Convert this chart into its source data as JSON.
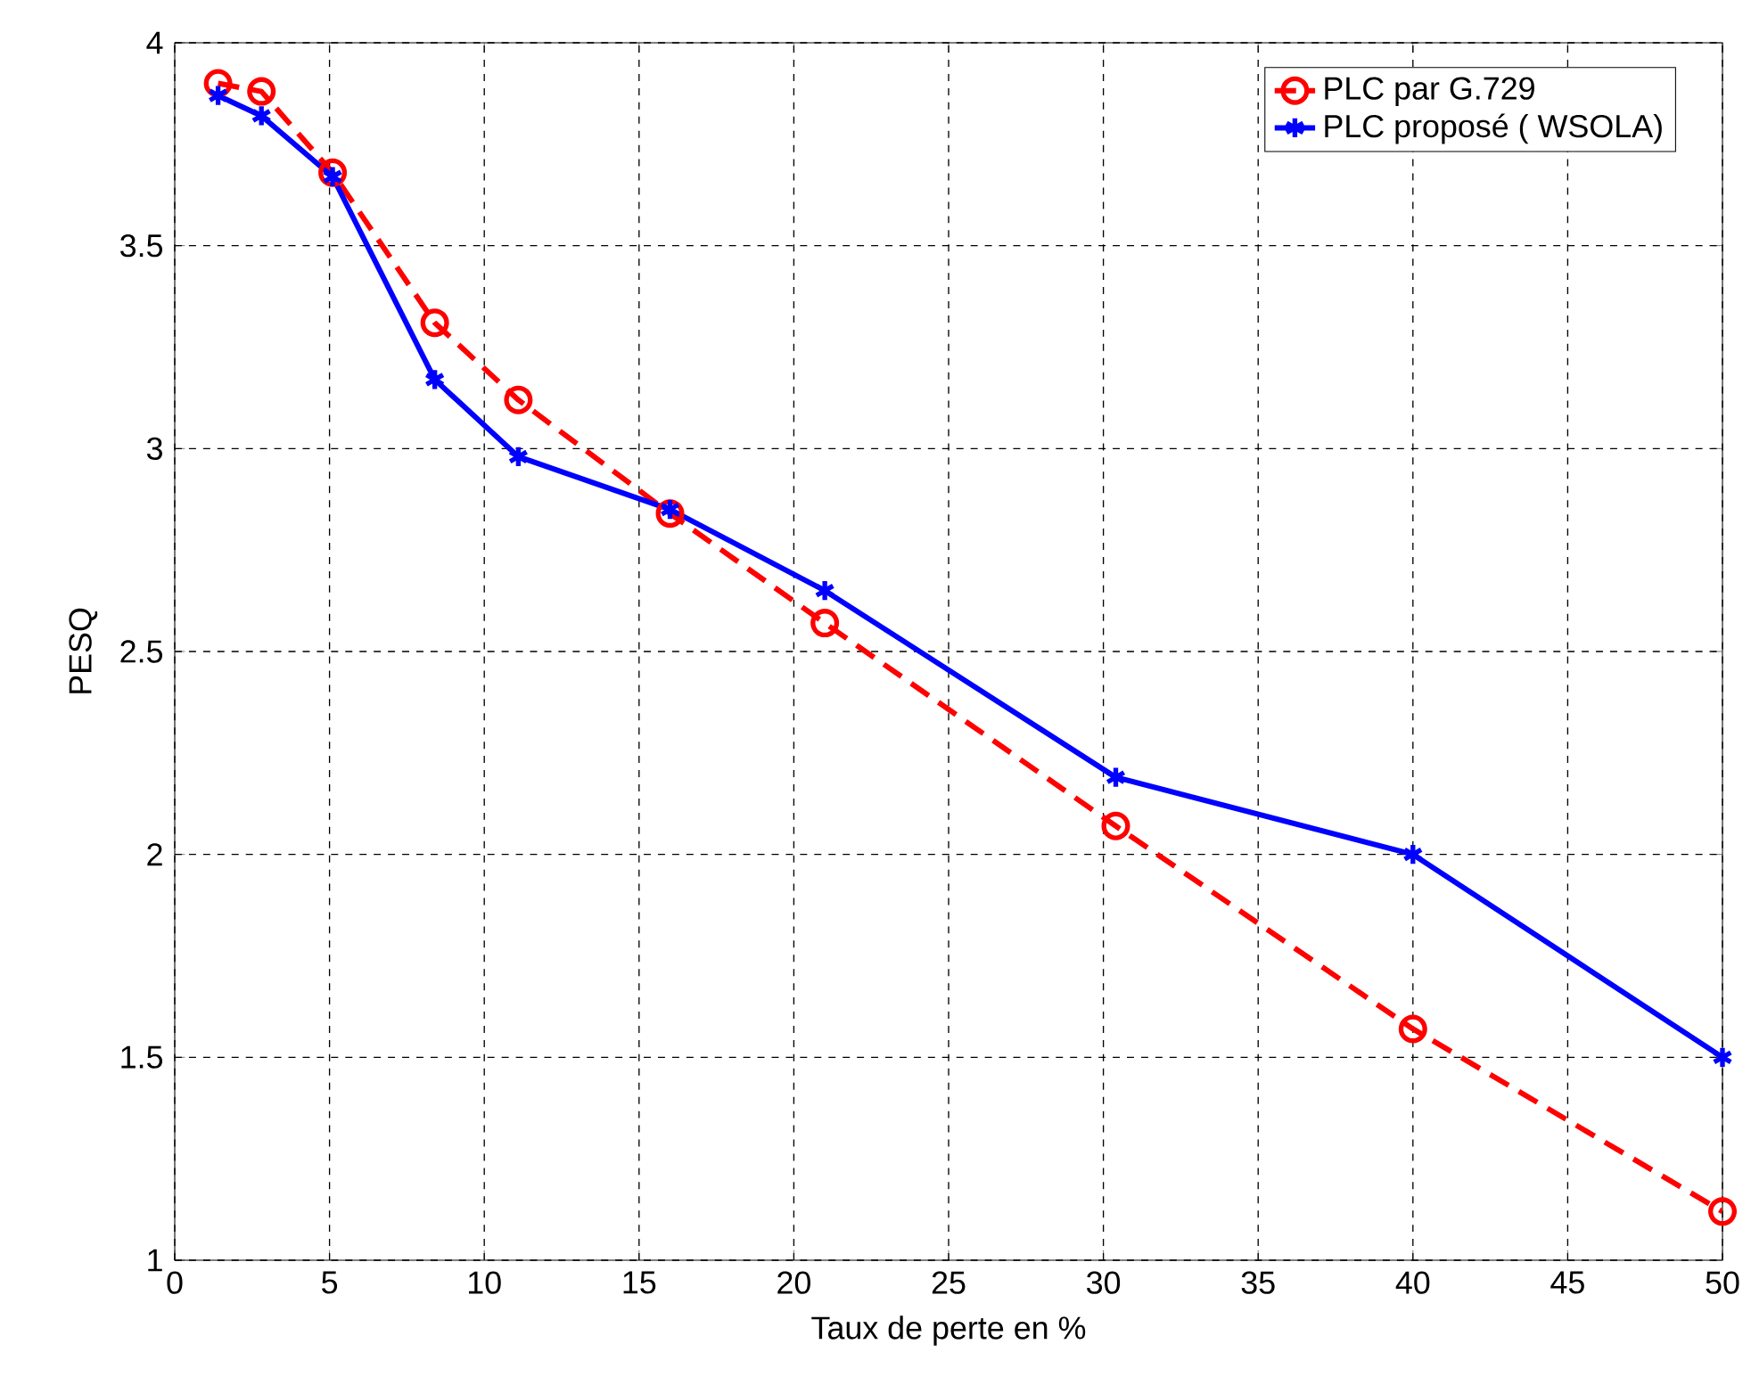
{
  "chart_data": {
    "type": "line",
    "xlabel": "Taux de perte en %",
    "ylabel": "PESQ",
    "xlim": [
      0,
      50
    ],
    "ylim": [
      1,
      4
    ],
    "xticks": [
      0,
      5,
      10,
      15,
      20,
      25,
      30,
      35,
      40,
      45,
      50
    ],
    "yticks": [
      1,
      1.5,
      2,
      2.5,
      3,
      3.5,
      4
    ],
    "grid": true,
    "legend": "top right",
    "series": [
      {
        "name": "PLC par G.729",
        "color": "#ff0000",
        "marker": "circle",
        "line_style": "dashed",
        "x": [
          1.4,
          2.8,
          5.1,
          8.4,
          11.1,
          16,
          21,
          30.4,
          40,
          50
        ],
        "values": [
          3.9,
          3.88,
          3.68,
          3.31,
          3.12,
          2.84,
          2.57,
          2.07,
          1.57,
          1.12
        ]
      },
      {
        "name": "PLC proposé ( WSOLA)",
        "color": "#0000ff",
        "marker": "cross",
        "line_style": "solid",
        "x": [
          1.4,
          2.8,
          5.1,
          8.4,
          11.1,
          16,
          21,
          30.4,
          40,
          50
        ],
        "values": [
          3.87,
          3.82,
          3.67,
          3.17,
          2.98,
          2.85,
          2.65,
          2.19,
          2.0,
          1.5
        ]
      }
    ]
  }
}
